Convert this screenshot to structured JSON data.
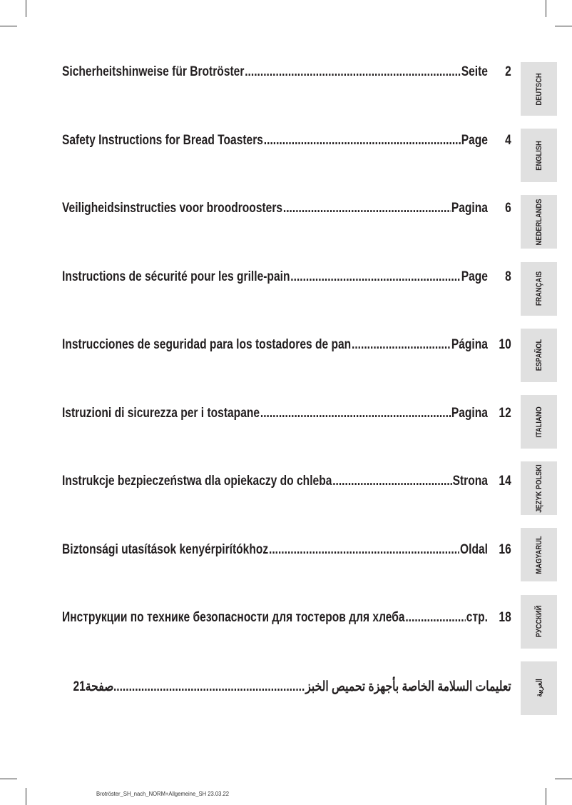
{
  "entries": [
    {
      "title": "Sicherheitshinweise für Brotröster",
      "label": "Seite",
      "page": "2",
      "tab": "DEUTSCH"
    },
    {
      "title": "Safety Instructions for Bread Toasters",
      "label": "Page",
      "page": "4",
      "tab": "ENGLISH"
    },
    {
      "title": "Veiligheidsinstructies voor broodroosters",
      "label": "Pagina",
      "page": "6",
      "tab": "NEDERLANDS"
    },
    {
      "title": "Instructions de sécurité pour les grille-pain",
      "label": "Page",
      "page": "8",
      "tab": "FRANÇAIS"
    },
    {
      "title": "Instrucciones de seguridad para los tostadores de pan",
      "label": "Página",
      "page": "10",
      "tab": "ESPAÑOL"
    },
    {
      "title": "Istruzioni di sicurezza per i tostapane",
      "label": "Pagina",
      "page": "12",
      "tab": "ITALIANO"
    },
    {
      "title": "Instrukcje bezpieczeństwa dla opiekaczy do chleba",
      "label": "Strona",
      "page": "14",
      "tab": "JĘZYK POLSKI"
    },
    {
      "title": "Biztonsági utasítások kenyérpirítókhoz",
      "label": "Oldal",
      "page": "16",
      "tab": "MAGYARUL"
    },
    {
      "title": "Инструкции по технике безопасности для тостеров для хлеба",
      "label": "стр.",
      "page": "18",
      "tab": "РУССКИЙ"
    },
    {
      "title": "تعليمات السلامة الخاصة بأجهزة تحميص الخبز",
      "label": "صفحة",
      "page": "21",
      "tab": "العربية"
    }
  ],
  "footer": "Brotröster_SH_nach_NORM+Allgemeine_SH  23.03.22"
}
